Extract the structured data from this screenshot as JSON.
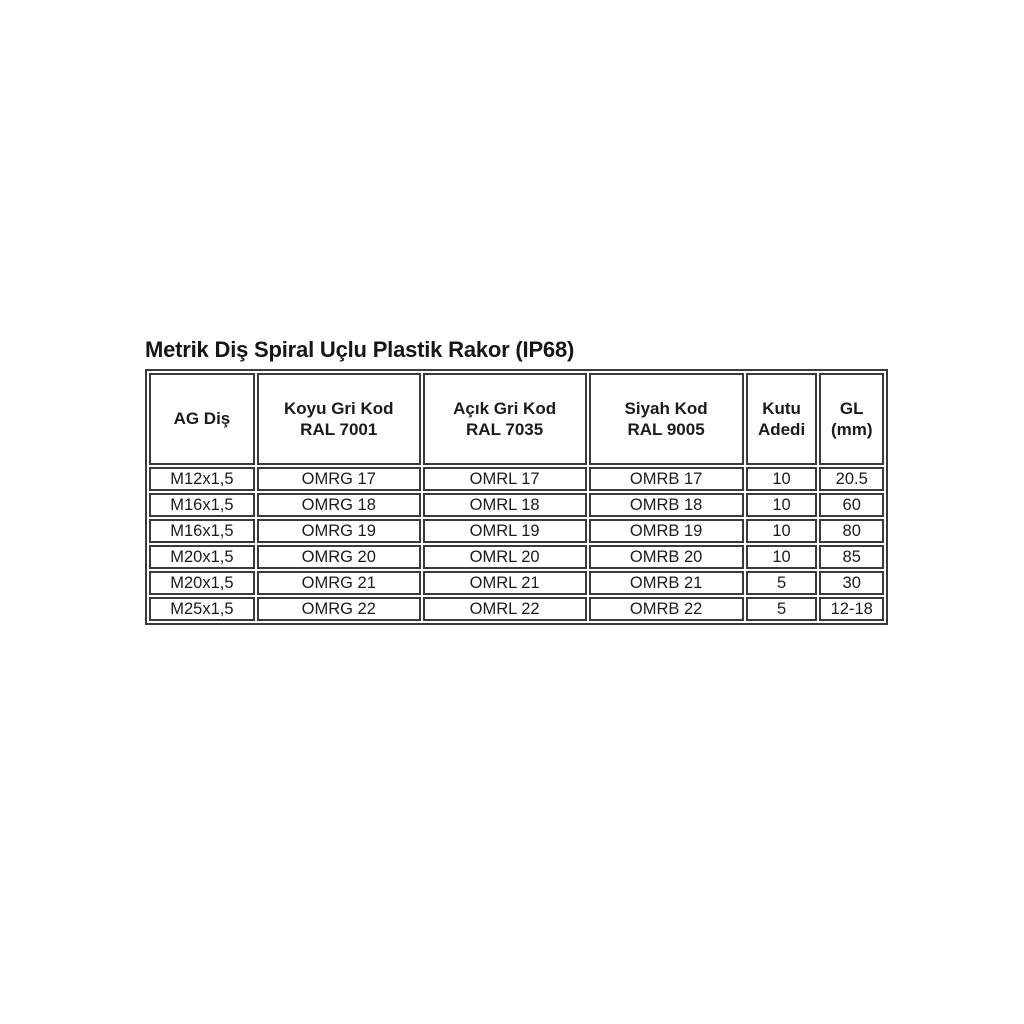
{
  "page": {
    "title": "Metrik Diş Spiral Uçlu Plastik Rakor (IP68)"
  },
  "table": {
    "columns": [
      {
        "id": "ag-dis",
        "lines": [
          "AG Diş"
        ]
      },
      {
        "id": "koyu-gri",
        "lines": [
          "Koyu Gri Kod",
          "RAL 7001"
        ]
      },
      {
        "id": "acik-gri",
        "lines": [
          "Açık Gri Kod",
          "RAL 7035"
        ]
      },
      {
        "id": "siyah",
        "lines": [
          "Siyah Kod",
          "RAL 9005"
        ]
      },
      {
        "id": "kutu-adedi",
        "lines": [
          "Kutu",
          "Adedi"
        ]
      },
      {
        "id": "gl-mm",
        "lines": [
          "GL",
          "(mm)"
        ]
      }
    ],
    "rows": [
      [
        "M12x1,5",
        "OMRG 17",
        "OMRL 17",
        "OMRB 17",
        "10",
        "20.5"
      ],
      [
        "M16x1,5",
        "OMRG 18",
        "OMRL 18",
        "OMRB 18",
        "10",
        "60"
      ],
      [
        "M16x1,5",
        "OMRG 19",
        "OMRL 19",
        "OMRB 19",
        "10",
        "80"
      ],
      [
        "M20x1,5",
        "OMRG 20",
        "OMRL 20",
        "OMRB 20",
        "10",
        "85"
      ],
      [
        "M20x1,5",
        "OMRG 21",
        "OMRL 21",
        "OMRB 21",
        "5",
        "30"
      ],
      [
        "M25x1,5",
        "OMRG 22",
        "OMRL 22",
        "OMRB 22",
        "5",
        "12-18"
      ]
    ]
  },
  "colors": {
    "text": "#1b1b1b",
    "border": "#3a3a3a",
    "background": "#ffffff"
  }
}
